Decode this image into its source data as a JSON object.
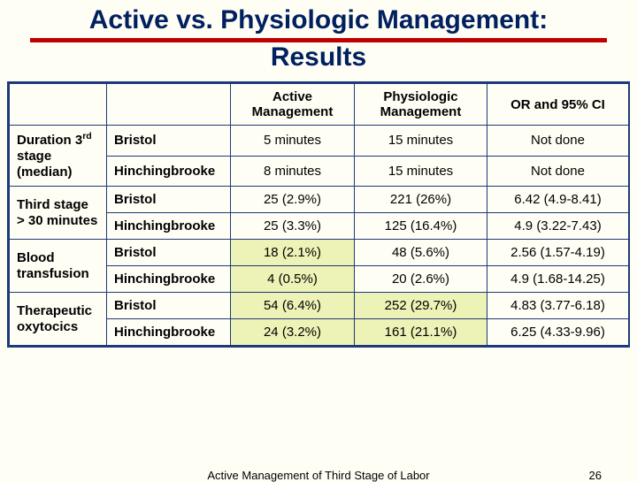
{
  "title_line1": "Active vs. Physiologic Management:",
  "title_line2": "Results",
  "columns": {
    "blank": "",
    "blank2": "",
    "active": "Active Management",
    "physiologic": "Physiologic Management",
    "or": "OR and 95% CI"
  },
  "groups": [
    {
      "label_pre": "Duration 3",
      "label_sup": "rd",
      "label_post": " stage (median)",
      "rows": [
        {
          "site": "Bristol",
          "active": "5 minutes",
          "physio": "15 minutes",
          "or": "Not done",
          "hl_active": false,
          "hl_physio": false
        },
        {
          "site": "Hinchingbrooke",
          "active": "8 minutes",
          "physio": "15 minutes",
          "or": "Not done",
          "hl_active": false,
          "hl_physio": false
        }
      ]
    },
    {
      "label_pre": "Third stage > 30 minutes",
      "label_sup": "",
      "label_post": "",
      "rows": [
        {
          "site": "Bristol",
          "active": "25 (2.9%)",
          "physio": "221 (26%)",
          "or": "6.42 (4.9-8.41)",
          "hl_active": false,
          "hl_physio": false
        },
        {
          "site": "Hinchingbrooke",
          "active": "25 (3.3%)",
          "physio": "125 (16.4%)",
          "or": "4.9 (3.22-7.43)",
          "hl_active": false,
          "hl_physio": false
        }
      ]
    },
    {
      "label_pre": "Blood transfusion",
      "label_sup": "",
      "label_post": "",
      "rows": [
        {
          "site": "Bristol",
          "active": "18 (2.1%)",
          "physio": "48 (5.6%)",
          "or": "2.56 (1.57-4.19)",
          "hl_active": true,
          "hl_physio": false
        },
        {
          "site": "Hinchingbrooke",
          "active": "4 (0.5%)",
          "physio": "20 (2.6%)",
          "or": "4.9 (1.68-14.25)",
          "hl_active": true,
          "hl_physio": false
        }
      ]
    },
    {
      "label_pre": "Therapeutic oxytocics",
      "label_sup": "",
      "label_post": "",
      "rows": [
        {
          "site": "Bristol",
          "active": "54 (6.4%)",
          "physio": "252 (29.7%)",
          "or": "4.83 (3.77-6.18)",
          "hl_active": true,
          "hl_physio": true
        },
        {
          "site": "Hinchingbrooke",
          "active": "24 (3.2%)",
          "physio": "161 (21.1%)",
          "or": "6.25 (4.33-9.96)",
          "hl_active": true,
          "hl_physio": true
        }
      ]
    }
  ],
  "footer": {
    "text": "Active Management of Third Stage of Labor",
    "page": "26"
  },
  "colors": {
    "background": "#fffef5",
    "title": "#002060",
    "rule": "#c00000",
    "border": "#1c3a7a",
    "highlight": "#edf2b6"
  }
}
